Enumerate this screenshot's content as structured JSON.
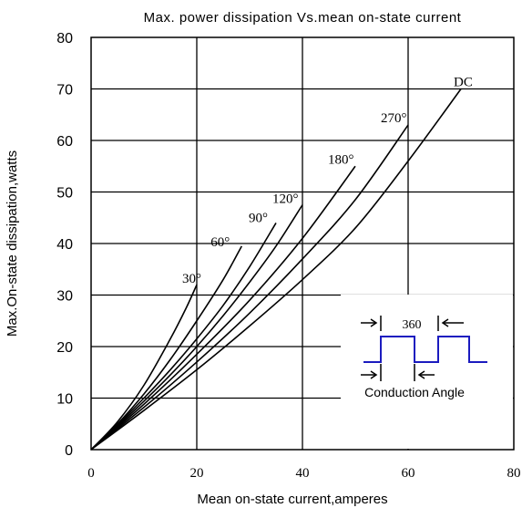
{
  "chart_data": {
    "type": "line",
    "title": "Max. power dissipation Vs.mean on-state current",
    "xlabel": "Mean on-state current,amperes",
    "ylabel": "Max.On-state dissipation,watts",
    "xlim": [
      0,
      80
    ],
    "ylim": [
      0,
      80
    ],
    "xticks": [
      "0",
      "20",
      "40",
      "60",
      "80"
    ],
    "yticks": [
      "0",
      "10",
      "20",
      "30",
      "40",
      "50",
      "60",
      "70",
      "80"
    ],
    "grid": true,
    "series": [
      {
        "name": "30°",
        "x": [
          0,
          5,
          10,
          15,
          18,
          20
        ],
        "y": [
          0,
          5.4,
          12.5,
          21.5,
          27.5,
          32
        ]
      },
      {
        "name": "60°",
        "x": [
          0,
          5,
          10,
          15,
          20,
          25,
          28.5
        ],
        "y": [
          0,
          5.0,
          10.8,
          17.5,
          25,
          33,
          39.5
        ]
      },
      {
        "name": "90°",
        "x": [
          0,
          5,
          10,
          15,
          20,
          25,
          30,
          35
        ],
        "y": [
          0,
          4.8,
          10.0,
          15.5,
          21.5,
          28,
          35.5,
          44
        ]
      },
      {
        "name": "120°",
        "x": [
          0,
          5,
          10,
          15,
          20,
          25,
          30,
          35,
          40
        ],
        "y": [
          0,
          4.6,
          9.4,
          14.5,
          20,
          26,
          32.5,
          39.5,
          47.5
        ]
      },
      {
        "name": "180°",
        "x": [
          0,
          10,
          20,
          30,
          40,
          50
        ],
        "y": [
          0,
          8.8,
          18.5,
          29,
          41,
          55
        ]
      },
      {
        "name": "270°",
        "x": [
          0,
          10,
          20,
          30,
          40,
          50,
          60
        ],
        "y": [
          0,
          8.2,
          17,
          26.5,
          37,
          48.5,
          63
        ]
      },
      {
        "name": "DC",
        "x": [
          0,
          10,
          20,
          30,
          40,
          50,
          60,
          70
        ],
        "y": [
          0,
          7.6,
          15.5,
          24,
          33,
          43,
          56,
          70
        ]
      }
    ],
    "inset": {
      "period_label": "360",
      "conduction_label": "Conduction Angle"
    }
  }
}
